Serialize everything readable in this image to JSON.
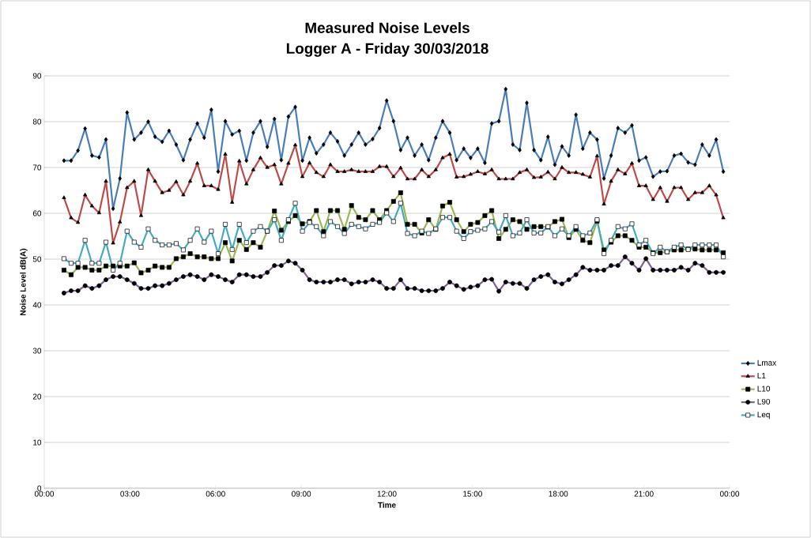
{
  "chart_data": {
    "type": "line",
    "title": "Measured Noise Levels",
    "subtitle": "Logger A - Friday 30/03/2018",
    "xlabel": "Time",
    "ylabel": "Noise Level dB(A)",
    "xlim": [
      0,
      24
    ],
    "ylim": [
      0,
      90
    ],
    "xticks": [
      {
        "value": 0,
        "label": "00:00"
      },
      {
        "value": 3,
        "label": "03:00"
      },
      {
        "value": 6,
        "label": "06:00"
      },
      {
        "value": 9,
        "label": "09:00"
      },
      {
        "value": 12,
        "label": "12:00"
      },
      {
        "value": 15,
        "label": "15:00"
      },
      {
        "value": 18,
        "label": "18:00"
      },
      {
        "value": 21,
        "label": "21:00"
      },
      {
        "value": 24,
        "label": "00:00"
      }
    ],
    "yticks": [
      0,
      10,
      20,
      30,
      40,
      50,
      60,
      70,
      80,
      90
    ],
    "grid": "y",
    "legend": "right",
    "line_style": "solid",
    "x": [
      0.69,
      0.94,
      1.18,
      1.43,
      1.67,
      1.92,
      2.16,
      2.41,
      2.65,
      2.9,
      3.15,
      3.39,
      3.64,
      3.88,
      4.13,
      4.37,
      4.62,
      4.87,
      5.11,
      5.36,
      5.6,
      5.85,
      6.09,
      6.34,
      6.58,
      6.83,
      7.08,
      7.32,
      7.57,
      7.81,
      8.06,
      8.3,
      8.55,
      8.79,
      9.04,
      9.29,
      9.53,
      9.78,
      10.02,
      10.27,
      10.51,
      10.76,
      11.01,
      11.25,
      11.5,
      11.74,
      11.99,
      12.23,
      12.48,
      12.72,
      12.97,
      13.22,
      13.46,
      13.71,
      13.95,
      14.2,
      14.44,
      14.69,
      14.93,
      15.18,
      15.43,
      15.67,
      15.92,
      16.16,
      16.41,
      16.65,
      16.9,
      17.15,
      17.39,
      17.64,
      17.88,
      18.13,
      18.37,
      18.62,
      18.86,
      19.11,
      19.36,
      19.6,
      19.85,
      20.09,
      20.34,
      20.58,
      20.83,
      21.07,
      21.32,
      21.57,
      21.81,
      22.06,
      22.3,
      22.55,
      22.79,
      23.04,
      23.29,
      23.53,
      23.78
    ],
    "series": [
      {
        "name": "Lmax",
        "color": "#4a7ebb",
        "marker": "diamond",
        "values": [
          71.5,
          71.5,
          73.7,
          78.5,
          72.6,
          72.2,
          76.1,
          61.0,
          67.6,
          82.0,
          76.1,
          77.6,
          80.0,
          76.7,
          75.6,
          78.0,
          75.0,
          71.6,
          76.1,
          79.6,
          76.5,
          82.6,
          69.1,
          80.1,
          77.2,
          78.0,
          71.5,
          77.6,
          80.1,
          74.5,
          80.6,
          71.6,
          81.1,
          83.2,
          71.5,
          76.5,
          73.1,
          75.0,
          77.6,
          75.7,
          72.6,
          75.0,
          77.6,
          75.0,
          76.2,
          78.6,
          84.6,
          80.1,
          73.8,
          76.5,
          72.6,
          75.0,
          71.6,
          76.5,
          80.1,
          77.6,
          71.6,
          74.1,
          72.1,
          74.1,
          71.0,
          79.6,
          80.1,
          87.1,
          75.0,
          73.8,
          84.1,
          73.8,
          71.6,
          76.7,
          70.6,
          74.6,
          72.6,
          81.5,
          74.1,
          77.6,
          76.1,
          67.6,
          72.6,
          78.6,
          77.6,
          79.2,
          71.5,
          72.2,
          68.0,
          69.1,
          69.2,
          72.6,
          73.0,
          71.1,
          70.6,
          75.0,
          72.6,
          76.1,
          69.1
        ]
      },
      {
        "name": "L1",
        "color": "#be4b48",
        "marker": "triangle",
        "values": [
          63.4,
          59.0,
          58.0,
          64.0,
          61.6,
          60.1,
          67.0,
          53.5,
          58.1,
          65.6,
          67.0,
          59.5,
          69.5,
          67.0,
          64.5,
          65.0,
          66.9,
          64.0,
          67.0,
          70.9,
          66.0,
          66.0,
          65.2,
          72.9,
          62.4,
          71.4,
          66.4,
          69.5,
          72.1,
          70.0,
          70.6,
          66.4,
          70.9,
          74.9,
          68.0,
          71.0,
          68.9,
          68.0,
          70.6,
          69.1,
          69.1,
          69.5,
          69.1,
          69.1,
          69.1,
          70.2,
          70.2,
          68.0,
          69.9,
          67.5,
          67.5,
          69.5,
          68.0,
          69.5,
          72.1,
          72.9,
          67.9,
          68.0,
          68.5,
          69.1,
          68.6,
          69.5,
          67.5,
          67.5,
          67.5,
          68.9,
          69.5,
          67.8,
          67.9,
          69.0,
          67.5,
          70.0,
          68.9,
          68.9,
          68.5,
          67.9,
          72.5,
          62.0,
          67.0,
          69.5,
          68.6,
          70.9,
          66.0,
          66.0,
          63.0,
          65.6,
          62.6,
          65.6,
          65.6,
          63.0,
          64.5,
          64.5,
          66.0,
          64.0,
          59.0
        ]
      },
      {
        "name": "L10",
        "color": "#98b954",
        "marker": "square",
        "values": [
          47.6,
          46.6,
          48.2,
          48.2,
          47.6,
          47.6,
          48.5,
          48.5,
          48.5,
          48.5,
          49.2,
          47.0,
          47.6,
          48.5,
          48.2,
          48.2,
          50.1,
          50.5,
          51.2,
          50.5,
          50.5,
          50.1,
          50.1,
          53.6,
          49.6,
          54.1,
          52.1,
          53.6,
          52.6,
          56.1,
          60.5,
          56.3,
          58.2,
          59.5,
          57.7,
          58.2,
          60.6,
          56.0,
          60.6,
          60.6,
          56.5,
          61.7,
          59.1,
          58.6,
          60.6,
          58.6,
          60.6,
          62.6,
          64.5,
          57.6,
          57.6,
          55.7,
          58.6,
          56.5,
          61.6,
          62.4,
          58.6,
          56.0,
          57.6,
          58.0,
          59.5,
          60.6,
          54.5,
          56.5,
          58.6,
          58.2,
          56.5,
          57.1,
          57.1,
          57.0,
          58.2,
          58.7,
          54.7,
          56.5,
          54.1,
          53.6,
          58.3,
          52.0,
          53.7,
          55.1,
          55.1,
          54.1,
          52.6,
          52.6,
          51.4,
          51.4,
          51.6,
          52.0,
          52.0,
          52.2,
          52.2,
          52.0,
          52.0,
          52.0,
          51.4
        ]
      },
      {
        "name": "L90",
        "color": "#7d60a0",
        "marker": "circle",
        "values": [
          42.6,
          43.1,
          43.1,
          44.2,
          43.6,
          44.2,
          45.5,
          46.2,
          46.2,
          45.5,
          44.7,
          43.6,
          43.6,
          44.2,
          44.2,
          44.7,
          45.5,
          46.2,
          46.6,
          46.2,
          45.5,
          46.6,
          46.2,
          45.5,
          45.0,
          46.6,
          46.6,
          46.2,
          46.2,
          47.1,
          48.6,
          48.6,
          49.6,
          49.1,
          47.6,
          45.5,
          45.0,
          45.0,
          45.0,
          45.5,
          45.5,
          44.6,
          45.0,
          45.0,
          45.5,
          45.0,
          43.6,
          43.6,
          45.5,
          43.6,
          43.6,
          43.1,
          43.1,
          43.1,
          43.6,
          45.0,
          44.2,
          43.4,
          43.9,
          44.2,
          45.5,
          45.6,
          43.0,
          45.0,
          44.7,
          44.7,
          43.6,
          45.5,
          46.2,
          46.6,
          45.0,
          44.6,
          45.5,
          46.6,
          48.2,
          47.6,
          47.6,
          47.6,
          48.6,
          48.6,
          50.5,
          49.1,
          47.6,
          50.1,
          47.6,
          47.6,
          47.6,
          47.6,
          48.2,
          47.6,
          49.1,
          48.6,
          47.1,
          47.1,
          47.1
        ]
      },
      {
        "name": "Leq",
        "color": "#46aac5",
        "marker": "square",
        "values": [
          50.1,
          49.1,
          49.1,
          54.1,
          49.1,
          49.1,
          53.7,
          47.6,
          49.1,
          56.1,
          53.7,
          52.6,
          56.6,
          54.1,
          53.1,
          53.1,
          53.4,
          52.0,
          54.1,
          56.6,
          53.7,
          56.1,
          51.2,
          57.6,
          52.1,
          57.6,
          53.6,
          56.1,
          57.1,
          56.1,
          58.6,
          54.1,
          58.6,
          62.2,
          56.1,
          58.0,
          57.1,
          55.1,
          58.2,
          57.1,
          55.6,
          57.6,
          57.1,
          56.6,
          57.6,
          58.0,
          60.1,
          58.2,
          62.2,
          55.6,
          55.1,
          56.1,
          55.6,
          56.6,
          59.1,
          59.1,
          56.1,
          54.5,
          56.0,
          56.3,
          56.6,
          58.2,
          55.9,
          59.5,
          55.1,
          55.7,
          58.6,
          55.7,
          55.7,
          57.1,
          55.1,
          56.6,
          55.1,
          57.1,
          55.1,
          55.7,
          58.6,
          51.2,
          54.1,
          57.1,
          56.6,
          57.7,
          53.1,
          54.1,
          51.2,
          52.6,
          51.6,
          52.6,
          53.1,
          52.1,
          53.1,
          53.1,
          53.1,
          53.1,
          50.5
        ]
      }
    ]
  }
}
